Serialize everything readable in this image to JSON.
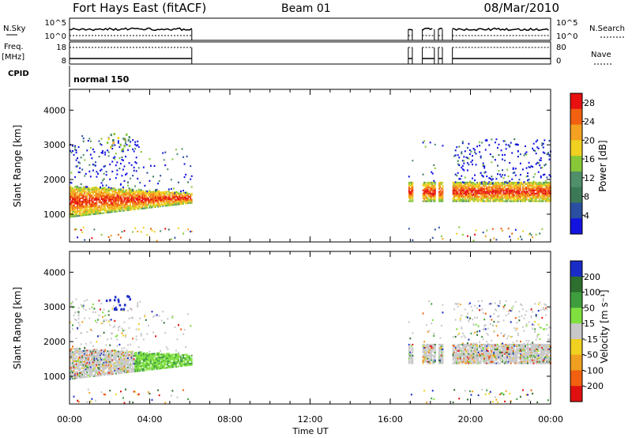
{
  "header": {
    "site": "Fort Hays East (fitACF)",
    "beam": "Beam 01",
    "date": "08/Mar/2010"
  },
  "status_panels": {
    "nsky_label": "N.Sky",
    "nsky_ticks": [
      "10^5",
      "10^0"
    ],
    "nsearch_label": "N.Search",
    "nsearch_ticks": [
      "10^5",
      "10^0"
    ],
    "freq_label_1": "Freq.",
    "freq_label_2": "[MHz]",
    "freq_ticks": [
      "18",
      "8"
    ],
    "nave_label": "Nave",
    "nave_ticks": [
      "80",
      "0"
    ],
    "cpid_label": "CPID",
    "cpid_value": "normal 150"
  },
  "chart_data": [
    {
      "type": "heatmap",
      "name": "power",
      "ylabel": "Slant Range [km]",
      "xlabel": "Time UT",
      "x_ticks": [
        "00:00",
        "04:00",
        "08:00",
        "12:00",
        "16:00",
        "20:00",
        "00:00"
      ],
      "xlim_hours": [
        0,
        24
      ],
      "y_ticks": [
        1000,
        2000,
        3000,
        4000
      ],
      "ylim": [
        200,
        4600
      ],
      "colorbar": {
        "label": "Power [dB]",
        "ticks": [
          4,
          8,
          12,
          16,
          20,
          24,
          28
        ],
        "range": [
          0,
          30
        ],
        "colors": [
          "#1313e0",
          "#2b4fa0",
          "#3c7a57",
          "#4f8f6a",
          "#88c838",
          "#f0d020",
          "#f4a020",
          "#f06010",
          "#e81010"
        ]
      },
      "data_periods_hours": [
        [
          0,
          6.1
        ],
        [
          16.9,
          17.1
        ],
        [
          17.6,
          18.2
        ],
        [
          18.4,
          18.6
        ],
        [
          19.1,
          24
        ]
      ]
    },
    {
      "type": "heatmap",
      "name": "velocity",
      "ylabel": "Slant Range [km]",
      "xlabel": "Time UT",
      "x_ticks": [
        "00:00",
        "04:00",
        "08:00",
        "12:00",
        "16:00",
        "20:00",
        "00:00"
      ],
      "xlim_hours": [
        0,
        24
      ],
      "y_ticks": [
        1000,
        2000,
        3000,
        4000
      ],
      "ylim": [
        200,
        4600
      ],
      "colorbar": {
        "label": "Velocity [m s⁻¹]",
        "ticks": [
          200,
          100,
          50,
          15,
          -15,
          -50,
          -100,
          -200
        ],
        "colors": [
          "#1a2cc8",
          "#2e6e2e",
          "#3e9e3e",
          "#80e040",
          "#c8c8c8",
          "#f0d020",
          "#f0a020",
          "#f06010",
          "#e01010"
        ]
      },
      "data_periods_hours": [
        [
          0,
          6.1
        ],
        [
          16.9,
          17.1
        ],
        [
          17.6,
          18.2
        ],
        [
          18.4,
          18.6
        ],
        [
          19.1,
          24
        ]
      ]
    }
  ]
}
